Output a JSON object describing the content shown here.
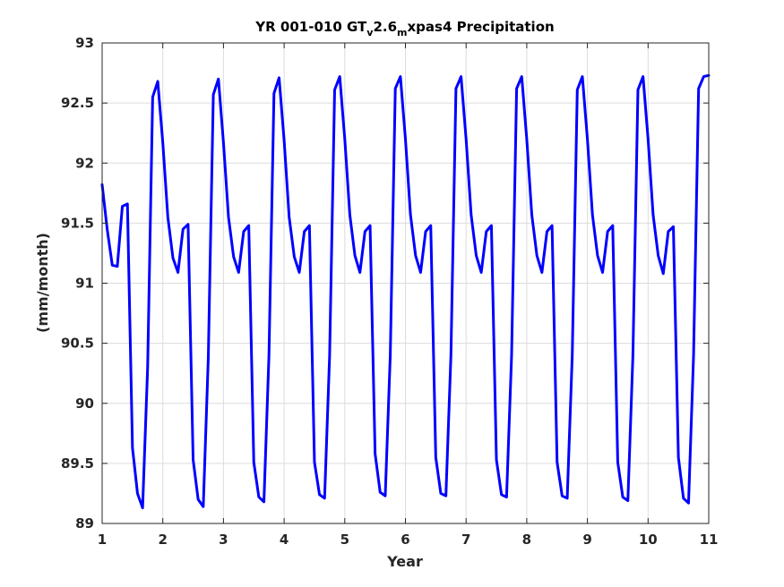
{
  "chart_data": {
    "type": "line",
    "title_parts": {
      "main": "YR 001-010 GT",
      "sub1": "v",
      "mid": "2.6",
      "sub2": "m",
      "tail": "xpas4 Precipitation"
    },
    "xlabel": "Year",
    "ylabel": "(mm/month)",
    "xlim": [
      1,
      11
    ],
    "ylim": [
      89,
      93
    ],
    "xticks": [
      1,
      2,
      3,
      4,
      5,
      6,
      7,
      8,
      9,
      10,
      11
    ],
    "yticks": [
      89,
      89.5,
      90,
      90.5,
      91,
      91.5,
      92,
      92.5,
      93
    ],
    "xtick_labels": [
      "1",
      "2",
      "3",
      "4",
      "5",
      "6",
      "7",
      "8",
      "9",
      "10",
      "11"
    ],
    "ytick_labels": [
      "89",
      "89.5",
      "90",
      "90.5",
      "91",
      "91.5",
      "92",
      "92.5",
      "93"
    ],
    "grid": true,
    "line_color": "#0000ff",
    "series": [
      {
        "x": [
          1.0,
          1.083,
          1.167,
          1.25,
          1.333,
          1.417,
          1.5,
          1.583,
          1.667,
          1.75,
          1.833,
          1.917,
          2.0,
          2.083,
          2.167,
          2.25,
          2.333,
          2.417,
          2.5,
          2.583,
          2.667,
          2.75,
          2.833,
          2.917,
          3.0,
          3.083,
          3.167,
          3.25,
          3.333,
          3.417,
          3.5,
          3.583,
          3.667,
          3.75,
          3.833,
          3.917,
          4.0,
          4.083,
          4.167,
          4.25,
          4.333,
          4.417,
          4.5,
          4.583,
          4.667,
          4.75,
          4.833,
          4.917,
          5.0,
          5.083,
          5.167,
          5.25,
          5.333,
          5.417,
          5.5,
          5.583,
          5.667,
          5.75,
          5.833,
          5.917,
          6.0,
          6.083,
          6.167,
          6.25,
          6.333,
          6.417,
          6.5,
          6.583,
          6.667,
          6.75,
          6.833,
          6.917,
          7.0,
          7.083,
          7.167,
          7.25,
          7.333,
          7.417,
          7.5,
          7.583,
          7.667,
          7.75,
          7.833,
          7.917,
          8.0,
          8.083,
          8.167,
          8.25,
          8.333,
          8.417,
          8.5,
          8.583,
          8.667,
          8.75,
          8.833,
          8.917,
          9.0,
          9.083,
          9.167,
          9.25,
          9.333,
          9.417,
          9.5,
          9.583,
          9.667,
          9.75,
          9.833,
          9.917,
          10.0,
          10.083,
          10.167,
          10.25,
          10.333,
          10.417,
          10.5,
          10.583,
          10.667,
          10.75,
          10.833,
          10.917,
          11.0
        ],
        "y": [
          91.82,
          91.45,
          91.15,
          91.14,
          91.64,
          91.66,
          89.63,
          89.25,
          89.13,
          90.3,
          92.55,
          92.68,
          92.17,
          91.55,
          91.21,
          91.09,
          91.45,
          91.49,
          89.53,
          89.2,
          89.14,
          90.38,
          92.57,
          92.7,
          92.17,
          91.55,
          91.22,
          91.09,
          91.43,
          91.48,
          89.51,
          89.22,
          89.18,
          90.4,
          92.58,
          92.71,
          92.19,
          91.55,
          91.22,
          91.09,
          91.43,
          91.48,
          89.51,
          89.24,
          89.21,
          90.4,
          92.61,
          92.72,
          92.2,
          91.57,
          91.23,
          91.09,
          91.43,
          91.48,
          89.58,
          89.26,
          89.23,
          90.4,
          92.62,
          92.72,
          92.2,
          91.57,
          91.23,
          91.09,
          91.43,
          91.48,
          89.55,
          89.25,
          89.23,
          90.4,
          92.62,
          92.72,
          92.2,
          91.57,
          91.23,
          91.09,
          91.43,
          91.48,
          89.53,
          89.24,
          89.22,
          90.4,
          92.62,
          92.72,
          92.2,
          91.57,
          91.23,
          91.09,
          91.43,
          91.48,
          89.51,
          89.23,
          89.21,
          90.4,
          92.61,
          92.72,
          92.2,
          91.57,
          91.23,
          91.09,
          91.43,
          91.48,
          89.51,
          89.22,
          89.19,
          90.4,
          92.61,
          92.72,
          92.2,
          91.57,
          91.23,
          91.08,
          91.43,
          91.47,
          89.55,
          89.21,
          89.17,
          90.4,
          92.62,
          92.72,
          92.73
        ]
      }
    ]
  }
}
